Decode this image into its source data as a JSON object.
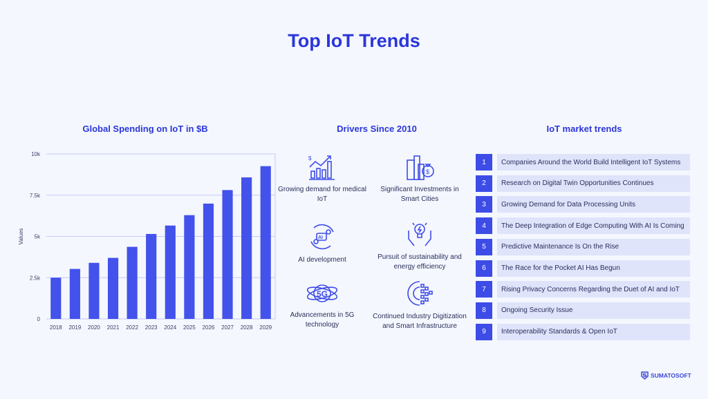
{
  "title": "Top IoT Trends",
  "sections": {
    "spending": "Global Spending on IoT in $B",
    "drivers": "Drivers Since 2010",
    "trends": "IoT market trends"
  },
  "chart_data": {
    "type": "bar",
    "title": "Global Spending on IoT in $B",
    "xlabel": "",
    "ylabel": "Values",
    "categories": [
      "2018",
      "2019",
      "2020",
      "2021",
      "2022",
      "2023",
      "2024",
      "2025",
      "2026",
      "2027",
      "2028",
      "2029"
    ],
    "values": [
      2500,
      3030,
      3400,
      3700,
      4370,
      5150,
      5660,
      6290,
      6990,
      7810,
      8580,
      9260
    ],
    "ylim": [
      0,
      10000
    ],
    "yticks": [
      {
        "v": 0,
        "label": "0"
      },
      {
        "v": 2500,
        "label": "2.5k"
      },
      {
        "v": 5000,
        "label": "5k"
      },
      {
        "v": 7500,
        "label": "7.5k"
      },
      {
        "v": 10000,
        "label": "10k"
      }
    ],
    "grid": true,
    "bar_color": "#4352ea"
  },
  "drivers": [
    {
      "icon": "growth-chart-icon",
      "label": "Growing demand for medical IoT"
    },
    {
      "icon": "city-investment-icon",
      "label": "Significant Investments in Smart Cities"
    },
    {
      "icon": "ai-gear-icon",
      "label": "AI development"
    },
    {
      "icon": "lightbulb-hands-icon",
      "label": "Pursuit of sustainability and energy efficiency"
    },
    {
      "icon": "5g-orbit-icon",
      "label": "Advancements in 5G technology"
    },
    {
      "icon": "digital-gear-icon",
      "label": "Continued Industry Digitization and Smart Infrastructure"
    }
  ],
  "trends": [
    {
      "n": "1",
      "label": "Companies Around the World Build Intelligent IoT Systems"
    },
    {
      "n": "2",
      "label": "Research on Digital Twin Opportunities Continues"
    },
    {
      "n": "3",
      "label": "Growing Demand for Data Processing Units"
    },
    {
      "n": "4",
      "label": "The Deep Integration of Edge Computing With AI Is Coming"
    },
    {
      "n": "5",
      "label": "Predictive Maintenance Is On the Rise"
    },
    {
      "n": "6",
      "label": "The Race for the Pocket AI Has Begun"
    },
    {
      "n": "7",
      "label": "Rising Privacy Concerns Regarding the Duet of AI and IoT"
    },
    {
      "n": "8",
      "label": "Ongoing Security Issue"
    },
    {
      "n": "9",
      "label": "Interoperability Standards & Open IoT"
    }
  ],
  "logo": "SUMATOSOFT",
  "colors": {
    "accent": "#2b36d9",
    "bar": "#4352ea",
    "background": "#f4f7fe",
    "row": "#dfe4fb"
  }
}
